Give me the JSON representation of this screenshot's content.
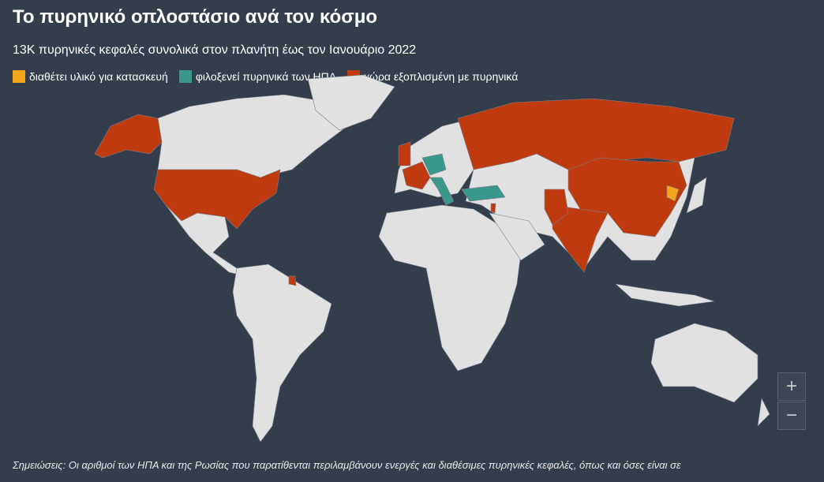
{
  "header": {
    "title": "Το πυρηνικό οπλοστάσιο ανά τον κόσμο",
    "subtitle": "13K πυρηνικές κεφαλές συνολικά στον πλανήτη έως τον Ιανουάριο 2022"
  },
  "legend": [
    {
      "label": "διαθέτει υλικό για κατασκευή",
      "color": "#f5a71b"
    },
    {
      "label": "φιλοξενεί πυρηνικά των ΗΠΑ",
      "color": "#3a978b"
    },
    {
      "label": "χώρα εξοπλισμένη με πυρηνικά",
      "color": "#bf3a0f"
    }
  ],
  "zoom": {
    "in": "+",
    "out": "−"
  },
  "note": "Σημειώσεις: Οι αριθμοί των ΗΠΑ και της Ρωσίας που παρατίθενται περιλαμβάνουν ενεργές και διαθέσιμες πυρηνικές κεφαλές, όπως και όσες είναι σε"
}
